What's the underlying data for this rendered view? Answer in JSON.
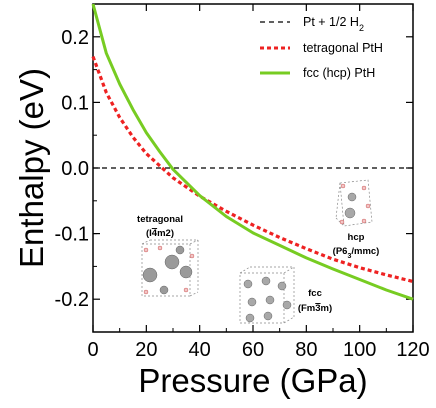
{
  "chart_data": {
    "type": "line",
    "title": "",
    "xlabel": "Pressure (GPa)",
    "ylabel": "Enthalpy (eV)",
    "xlim": [
      0,
      120
    ],
    "ylim": [
      -0.25,
      0.25
    ],
    "xticks": [
      0,
      20,
      40,
      60,
      80,
      100,
      120
    ],
    "yticks": [
      0.2,
      0.1,
      0.0,
      -0.1,
      -0.2
    ],
    "ytick_labels": [
      "0.2",
      "0.1",
      "0.0",
      "-0.1",
      "-0.2"
    ],
    "grid": false,
    "legend_position": "top-right",
    "series": [
      {
        "name": "Pt + 1/2 H",
        "name_sub": "2",
        "style": "dashed",
        "color": "#000000",
        "x": [
          0,
          120
        ],
        "y": [
          0,
          0
        ]
      },
      {
        "name": "tetragonal PtH",
        "style": "dotted",
        "color": "#ee2222",
        "x": [
          0,
          5,
          10,
          15,
          20,
          30,
          40,
          50,
          60,
          70,
          80,
          90,
          100,
          110,
          120
        ],
        "y": [
          0.17,
          0.115,
          0.077,
          0.047,
          0.022,
          -0.015,
          -0.043,
          -0.066,
          -0.087,
          -0.106,
          -0.123,
          -0.139,
          -0.152,
          -0.163,
          -0.173
        ]
      },
      {
        "name": "fcc (hcp) PtH",
        "style": "solid",
        "color": "#77cc22",
        "x": [
          0,
          5,
          10,
          15,
          20,
          25,
          30,
          40,
          50,
          60,
          70,
          80,
          90,
          100,
          110,
          120
        ],
        "y": [
          0.25,
          0.175,
          0.128,
          0.089,
          0.054,
          0.025,
          -0.002,
          -0.042,
          -0.074,
          -0.099,
          -0.118,
          -0.137,
          -0.154,
          -0.17,
          -0.186,
          -0.2
        ]
      }
    ],
    "annotations": [
      {
        "id": "tetragonal",
        "line1": "tetragonal",
        "line2_pre": "(I",
        "line2_bar": "4",
        "line2_post": "m2)"
      },
      {
        "id": "fcc",
        "line1": "fcc",
        "line2_pre": "(Fm",
        "line2_bar": "3",
        "line2_post": "m)"
      },
      {
        "id": "hcp",
        "line1": "hcp",
        "line2_pre": "(P6",
        "line2_sub": "3",
        "line2_post": "/mmc)"
      }
    ]
  }
}
